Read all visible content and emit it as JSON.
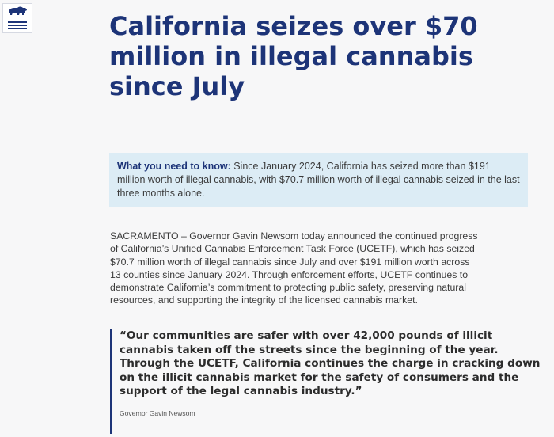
{
  "logo": {
    "icon": "california-bear-icon"
  },
  "article": {
    "title": "California seizes over $70 million in illegal cannabis since July",
    "callout": {
      "label": "What you need to know:",
      "text": " Since January 2024, California has seized more than $191 million worth of illegal cannabis, with $70.7 million worth of illegal cannabis seized in the last three months alone."
    },
    "body": "SACRAMENTO – Governor Gavin Newsom today announced the continued progress of California’s Unified Cannabis Enforcement Task Force (UCETF), which has seized $70.7 million worth of illegal cannabis since July and over $191 million worth across 13 counties since January 2024. Through enforcement efforts, UCETF continues to demonstrate California’s commitment to protecting public safety, preserving natural resources, and supporting the integrity of the licensed cannabis market.",
    "quote": {
      "text": "“Our communities are safer with over 42,000 pounds of illicit cannabis taken off the streets since the beginning of the year. Through the UCETF, California continues the charge in cracking down on the illicit cannabis market for the safety of consumers and the support of the legal cannabis industry.”",
      "author": "Governor Gavin Newsom"
    }
  },
  "colors": {
    "brand": "#1d3478",
    "callout_bg": "#dcecf5"
  }
}
